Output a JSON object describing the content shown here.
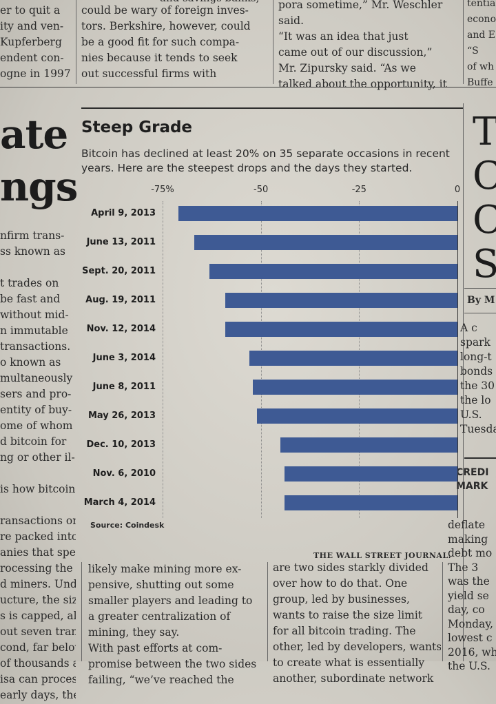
{
  "article": {
    "left_top": [
      "er to quit a",
      "ity and ven-",
      "Kupferberg",
      "endent con-",
      "ogne in 1997"
    ],
    "col2_top": [
      "could be wary of foreign inves-",
      "tors. Berkshire, however, could",
      "be a good fit for such compa-",
      "nies because it tends to seek",
      "out  successful  firms  with"
    ],
    "col3_top": [
      "pora sometime,” Mr. Weschler",
      "said.",
      "“It was an idea that just",
      "came out of our discussion,”",
      "Mr. Zipursky said. “As we",
      "talked about the opportunity, it"
    ],
    "right_top": [
      "tentia",
      "econo",
      "and E",
      "“S",
      "of wh",
      "Buffe"
    ],
    "left_headline": [
      "ate",
      "ngs"
    ],
    "left_body": [
      "nfirm trans-",
      "ss known as",
      "",
      "t trades on",
      " be fast and",
      "without mid-",
      "n immutable",
      "transactions.",
      "o known as",
      "multaneously",
      "sers and pro-",
      "entity of buy-",
      "ome of whom",
      "d bitcoin for",
      "ng or other il-",
      "",
      "is how bitcoin",
      "",
      "ransactions on",
      "re packed into",
      "anies that spe-",
      "rocessing  the",
      "d miners. Under",
      "ucture, the size",
      "s is capped, al-",
      "out seven trans-",
      "cond, far below",
      " of thousands a",
      "isa can process.",
      " early days, the"
    ],
    "col2_bottom": [
      "likely make mining more ex-",
      "pensive, shutting out some",
      "smaller players and leading to",
      "a  greater  centralization  of",
      "mining, they say.",
      "   With past efforts at com-",
      "promise between the two sides",
      "failing, “we’ve reached the"
    ],
    "col3_bottom": [
      "are two sides starkly divided",
      "over how to do that. One",
      "group, led by businesses,",
      "wants to raise the size limit",
      "for all bitcoin trading. The",
      "other, led by developers, wants",
      "to create what is essentially",
      "another, subordinate network"
    ],
    "right_headline": [
      "T",
      "C",
      "C",
      "S"
    ],
    "right_byline": "By M",
    "right_body": [
      "A c",
      "spark",
      "long-t",
      "bonds",
      "the 30",
      "the lo",
      "U.S.",
      "Tuesda"
    ],
    "right_section": [
      "CREDI",
      "MARK"
    ],
    "right_body2": [
      "deflate",
      "making",
      "debt mo",
      "The 3",
      "was the",
      "yield se",
      "day, co",
      "Monday,",
      "lowest c",
      "2016, whe",
      "the U.S."
    ],
    "top_fragment": "and savings banks,"
  },
  "chart_data": {
    "type": "bar",
    "orientation": "horizontal",
    "title": "Steep Grade",
    "subtitle": "Bitcoin has declined at least 20% on 35 separate occasions in recent years. Here are the steepest drops and the days they started.",
    "categories": [
      "April 9, 2013",
      "June 13, 2011",
      "Sept. 20, 2011",
      "Aug. 19, 2011",
      "Nov. 12, 2014",
      "June 3, 2014",
      "June 8, 2011",
      "May 26, 2013",
      "Dec. 10, 2013",
      "Nov. 6, 2010",
      "March 4, 2014"
    ],
    "values": [
      -71,
      -67,
      -63,
      -59,
      -59,
      -53,
      -52,
      -51,
      -45,
      -44,
      -44
    ],
    "ticks": [
      -75,
      -50,
      -25,
      0
    ],
    "tick_labels": [
      "-75%",
      "-50",
      "-25",
      "0"
    ],
    "xlim": [
      -75,
      0
    ],
    "grid": true,
    "bar_color": "#3e5a94",
    "source": "Source: Coindesk",
    "credit": "THE WALL STREET JOURNAL."
  }
}
